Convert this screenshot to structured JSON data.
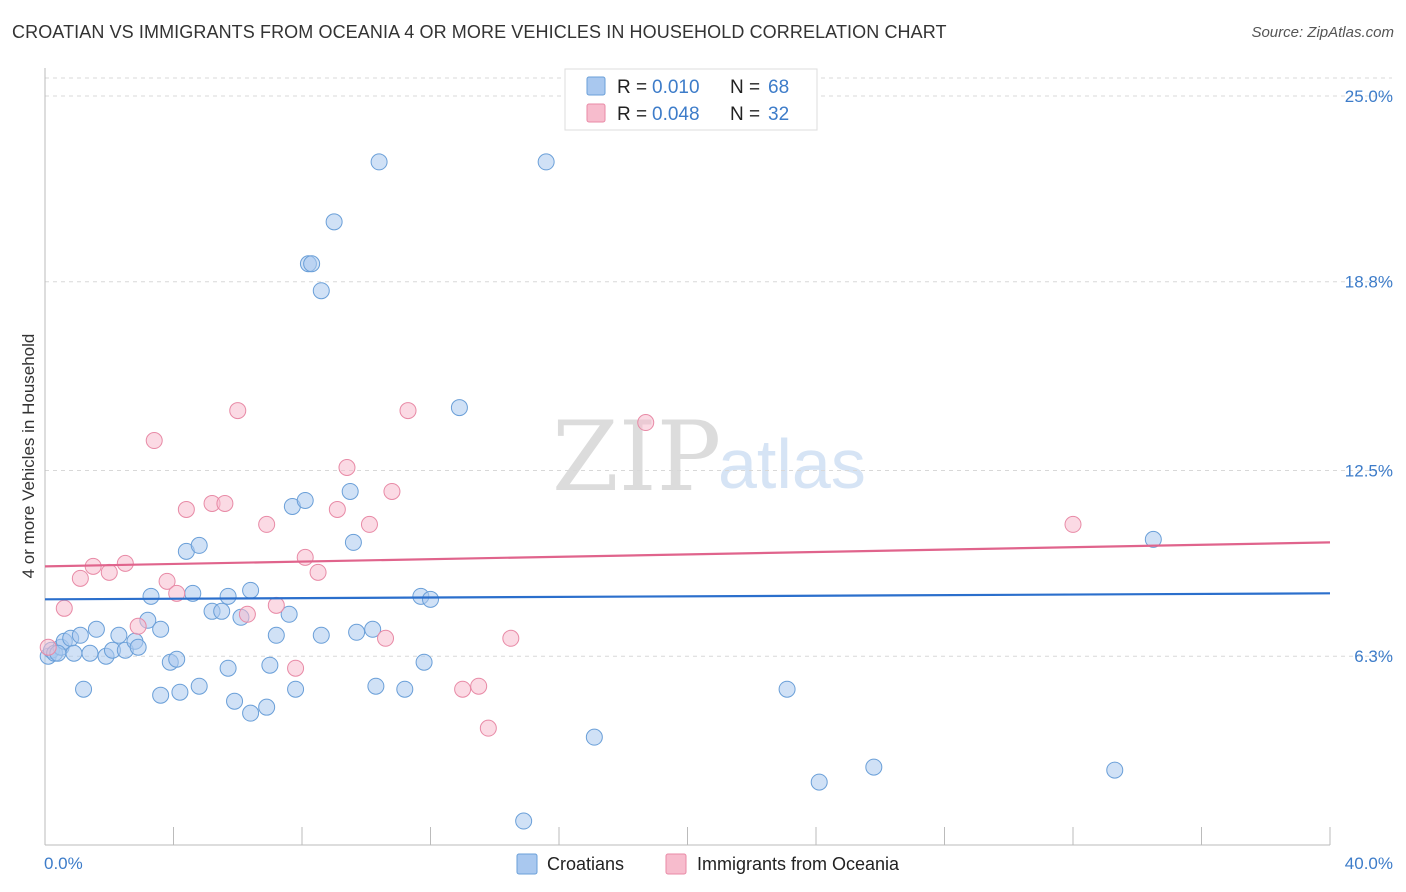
{
  "header": {
    "title": "CROATIAN VS IMMIGRANTS FROM OCEANIA 4 OR MORE VEHICLES IN HOUSEHOLD CORRELATION CHART",
    "source": "Source: ZipAtlas.com"
  },
  "watermark": {
    "zip": "ZIP",
    "atlas": "atlas"
  },
  "legend": {
    "r_label": "R =",
    "n_label": "N =",
    "rows": [
      {
        "r": "0.010",
        "n": "68",
        "color": "#a9c8ef",
        "stroke": "#6a9fd8"
      },
      {
        "r": "0.048",
        "n": "32",
        "color": "#f7bccd",
        "stroke": "#e88aa6"
      }
    ]
  },
  "bottom_legend": {
    "items": [
      {
        "label": "Croatians",
        "color": "#a9c8ef",
        "stroke": "#6a9fd8"
      },
      {
        "label": "Immigrants from Oceania",
        "color": "#f7bccd",
        "stroke": "#e88aa6"
      }
    ]
  },
  "chart_data": {
    "type": "scatter",
    "title": "CROATIAN VS IMMIGRANTS FROM OCEANIA 4 OR MORE VEHICLES IN HOUSEHOLD CORRELATION CHART",
    "xlabel": "",
    "ylabel": "4 or more Vehicles in Household",
    "xlim": [
      0,
      40
    ],
    "ylim": [
      0,
      25.6
    ],
    "x_tick_labels": [
      "0.0%",
      "40.0%"
    ],
    "y_ticks": [
      6.3,
      12.5,
      18.8,
      25.0
    ],
    "y_tick_labels": [
      "6.3%",
      "12.5%",
      "18.8%",
      "25.0%"
    ],
    "series": [
      {
        "name": "Croatians",
        "color": "#a9c8ef",
        "stroke": "#6a9fd8",
        "line_color": "#2b6fcc",
        "trend": {
          "x": [
            0,
            40
          ],
          "y": [
            8.2,
            8.4
          ]
        },
        "points": [
          [
            0.1,
            6.3
          ],
          [
            0.2,
            6.5
          ],
          [
            0.3,
            6.4
          ],
          [
            0.5,
            6.6
          ],
          [
            0.6,
            6.8
          ],
          [
            0.8,
            6.9
          ],
          [
            0.9,
            6.4
          ],
          [
            1.1,
            7.0
          ],
          [
            1.4,
            6.4
          ],
          [
            1.6,
            7.2
          ],
          [
            1.9,
            6.3
          ],
          [
            2.1,
            6.5
          ],
          [
            2.3,
            7.0
          ],
          [
            2.5,
            6.5
          ],
          [
            2.8,
            6.8
          ],
          [
            2.9,
            6.6
          ],
          [
            3.2,
            7.5
          ],
          [
            3.3,
            8.3
          ],
          [
            3.6,
            7.2
          ],
          [
            3.9,
            6.1
          ],
          [
            4.1,
            6.2
          ],
          [
            4.4,
            9.8
          ],
          [
            4.6,
            8.4
          ],
          [
            4.8,
            10.0
          ],
          [
            5.2,
            7.8
          ],
          [
            5.5,
            7.8
          ],
          [
            5.7,
            8.3
          ],
          [
            6.1,
            7.6
          ],
          [
            6.4,
            8.5
          ],
          [
            7.6,
            7.7
          ],
          [
            7.7,
            11.3
          ],
          [
            8.1,
            11.5
          ],
          [
            8.6,
            7.0
          ],
          [
            9.5,
            11.8
          ],
          [
            9.6,
            10.1
          ],
          [
            9.7,
            7.1
          ],
          [
            11.8,
            6.1
          ],
          [
            11.7,
            8.3
          ],
          [
            12.0,
            8.2
          ],
          [
            11.2,
            5.2
          ],
          [
            1.2,
            5.2
          ],
          [
            3.6,
            5.0
          ],
          [
            4.2,
            5.1
          ],
          [
            4.8,
            5.3
          ],
          [
            5.7,
            5.9
          ],
          [
            5.9,
            4.8
          ],
          [
            6.4,
            4.4
          ],
          [
            6.9,
            4.6
          ],
          [
            7.0,
            6.0
          ],
          [
            7.2,
            7.0
          ],
          [
            7.8,
            5.2
          ],
          [
            10.2,
            7.2
          ],
          [
            10.3,
            5.3
          ],
          [
            12.9,
            14.6
          ],
          [
            8.2,
            19.4
          ],
          [
            8.3,
            19.4
          ],
          [
            8.6,
            18.5
          ],
          [
            9.0,
            20.8
          ],
          [
            10.4,
            22.8
          ],
          [
            15.6,
            22.8
          ],
          [
            17.1,
            3.6
          ],
          [
            23.1,
            5.2
          ],
          [
            24.1,
            2.1
          ],
          [
            25.8,
            2.6
          ],
          [
            33.3,
            2.5
          ],
          [
            34.5,
            10.2
          ],
          [
            14.9,
            0.8
          ],
          [
            0.4,
            6.4
          ]
        ]
      },
      {
        "name": "Immigrants from Oceania",
        "color": "#f7bccd",
        "stroke": "#e88aa6",
        "line_color": "#e0648c",
        "trend": {
          "x": [
            0,
            40
          ],
          "y": [
            9.3,
            10.1
          ]
        },
        "points": [
          [
            0.1,
            6.6
          ],
          [
            0.6,
            7.9
          ],
          [
            1.1,
            8.9
          ],
          [
            1.5,
            9.3
          ],
          [
            2.0,
            9.1
          ],
          [
            2.5,
            9.4
          ],
          [
            2.9,
            7.3
          ],
          [
            3.4,
            13.5
          ],
          [
            3.8,
            8.8
          ],
          [
            4.1,
            8.4
          ],
          [
            4.4,
            11.2
          ],
          [
            5.2,
            11.4
          ],
          [
            5.6,
            11.4
          ],
          [
            6.0,
            14.5
          ],
          [
            6.3,
            7.7
          ],
          [
            6.9,
            10.7
          ],
          [
            7.2,
            8.0
          ],
          [
            7.8,
            5.9
          ],
          [
            8.1,
            9.6
          ],
          [
            8.5,
            9.1
          ],
          [
            9.1,
            11.2
          ],
          [
            9.4,
            12.6
          ],
          [
            10.1,
            10.7
          ],
          [
            10.6,
            6.9
          ],
          [
            10.8,
            11.8
          ],
          [
            11.3,
            14.5
          ],
          [
            13.0,
            5.2
          ],
          [
            13.5,
            5.3
          ],
          [
            13.8,
            3.9
          ],
          [
            14.5,
            6.9
          ],
          [
            18.7,
            14.1
          ],
          [
            32.0,
            10.7
          ]
        ]
      }
    ]
  }
}
